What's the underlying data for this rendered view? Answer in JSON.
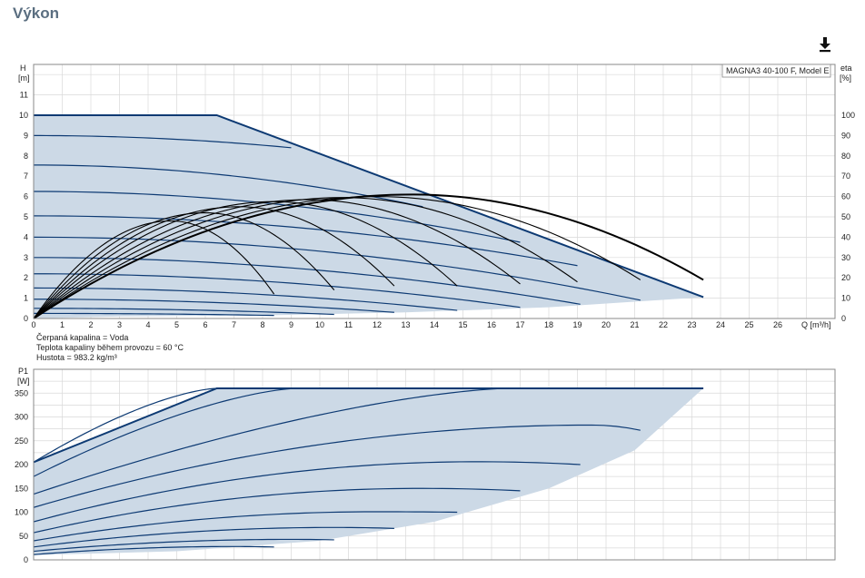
{
  "page": {
    "title": "Výkon"
  },
  "toolbar": {
    "download_icon": "download-icon"
  },
  "legend": {
    "label": "MAGNA3 40-100 F, Model E"
  },
  "fluid_notes": [
    "Čerpaná kapalina = Voda",
    "Teplota kapaliny během provozu = 60 °C",
    "Hustota = 983.2 kg/m³"
  ],
  "colors": {
    "area": "#ccd9e6",
    "curve": "#0d3a73",
    "eta": "#000000",
    "grid": "#d9d9d9"
  },
  "chart_data": [
    {
      "type": "line",
      "name": "head-chart",
      "ylabel_left": [
        "H",
        "[m]"
      ],
      "ylabel_right": [
        "eta",
        "[%]"
      ],
      "xlabel": "Q [m³/h]",
      "xlim": [
        0,
        28
      ],
      "ylim": [
        0,
        12.5
      ],
      "y2lim": [
        0,
        125
      ],
      "x_ticks": [
        0,
        1,
        2,
        3,
        4,
        5,
        6,
        7,
        8,
        9,
        10,
        11,
        12,
        13,
        14,
        15,
        16,
        17,
        18,
        19,
        20,
        21,
        22,
        23,
        24,
        25,
        26
      ],
      "y_ticks": [
        0,
        1,
        2,
        3,
        4,
        5,
        6,
        7,
        8,
        9,
        10,
        11
      ],
      "y2_ticks": [
        0,
        10,
        20,
        30,
        40,
        50,
        60,
        70,
        80,
        90,
        100
      ],
      "envelope": {
        "max_curve": [
          [
            0,
            10
          ],
          [
            6.4,
            10
          ],
          [
            23.4,
            1.05
          ]
        ],
        "min_curve": [
          [
            0,
            0
          ],
          [
            3,
            0.1
          ],
          [
            8,
            0.15
          ],
          [
            13,
            0.3
          ],
          [
            18,
            0.55
          ],
          [
            23.4,
            1.05
          ]
        ]
      },
      "pump_curves": [
        {
          "shut_off": 9.0,
          "end": [
            9.0,
            8.4
          ]
        },
        {
          "shut_off": 7.55,
          "end": [
            13.6,
            5.5
          ]
        },
        {
          "shut_off": 6.25,
          "end": [
            17.0,
            3.75
          ]
        },
        {
          "shut_off": 5.05,
          "end": [
            19.0,
            2.6
          ]
        },
        {
          "shut_off": 4.0,
          "end": [
            21.2,
            0.9
          ]
        },
        {
          "shut_off": 3.0,
          "end": [
            19.1,
            0.7
          ]
        },
        {
          "shut_off": 2.2,
          "end": [
            17.0,
            0.55
          ]
        },
        {
          "shut_off": 1.5,
          "end": [
            14.8,
            0.4
          ]
        },
        {
          "shut_off": 0.95,
          "end": [
            12.6,
            0.3
          ]
        },
        {
          "shut_off": 0.5,
          "end": [
            10.5,
            0.2
          ]
        },
        {
          "shut_off": 0.25,
          "end": [
            8.4,
            0.15
          ]
        }
      ],
      "eta_curves": [
        {
          "peak": [
            13.2,
            61
          ],
          "end": [
            23.4,
            19
          ]
        },
        {
          "peak": [
            12.0,
            60
          ],
          "end": [
            21.2,
            19
          ]
        },
        {
          "peak": [
            10.8,
            59.5
          ],
          "end": [
            19.0,
            18
          ]
        },
        {
          "peak": [
            9.6,
            58.5
          ],
          "end": [
            17.0,
            17
          ]
        },
        {
          "peak": [
            8.4,
            57.5
          ],
          "end": [
            14.8,
            16
          ]
        },
        {
          "peak": [
            7.2,
            55
          ],
          "end": [
            12.6,
            16
          ]
        },
        {
          "peak": [
            6.0,
            52
          ],
          "end": [
            10.5,
            14
          ]
        },
        {
          "peak": [
            4.8,
            48
          ],
          "end": [
            8.4,
            12
          ]
        }
      ]
    },
    {
      "type": "line",
      "name": "power-chart",
      "ylabel_left": [
        "P1",
        "[W]"
      ],
      "xlim": [
        0,
        28
      ],
      "ylim": [
        0,
        400
      ],
      "y_ticks": [
        0,
        50,
        100,
        150,
        200,
        250,
        300,
        350
      ],
      "envelope": {
        "max_curve": [
          [
            0,
            205
          ],
          [
            6.4,
            360
          ],
          [
            23.4,
            360
          ]
        ],
        "min_curve": [
          [
            0,
            10
          ],
          [
            5,
            18
          ],
          [
            10,
            40
          ],
          [
            14,
            80
          ],
          [
            18,
            150
          ],
          [
            21,
            230
          ],
          [
            23.4,
            360
          ]
        ]
      },
      "power_curves": [
        {
          "start": 205,
          "end": [
            6.4,
            360
          ]
        },
        {
          "start": 175,
          "end": [
            9.2,
            360
          ]
        },
        {
          "start": 138,
          "end": [
            16.6,
            360
          ]
        },
        {
          "start": 110,
          "end": [
            21.2,
            272
          ],
          "peak": [
            19.5,
            283
          ]
        },
        {
          "start": 80,
          "end": [
            19.1,
            200
          ],
          "peak": [
            15.5,
            206
          ]
        },
        {
          "start": 57,
          "end": [
            17.0,
            145
          ],
          "peak": [
            13.5,
            150
          ]
        },
        {
          "start": 40,
          "end": [
            14.8,
            100
          ],
          "peak": [
            12.0,
            101
          ]
        },
        {
          "start": 27,
          "end": [
            12.6,
            66
          ],
          "peak": [
            10.5,
            68
          ]
        },
        {
          "start": 18,
          "end": [
            10.5,
            42
          ],
          "peak": [
            9.0,
            43
          ]
        },
        {
          "start": 11,
          "end": [
            8.4,
            27
          ],
          "peak": [
            7.0,
            28
          ]
        }
      ]
    }
  ]
}
